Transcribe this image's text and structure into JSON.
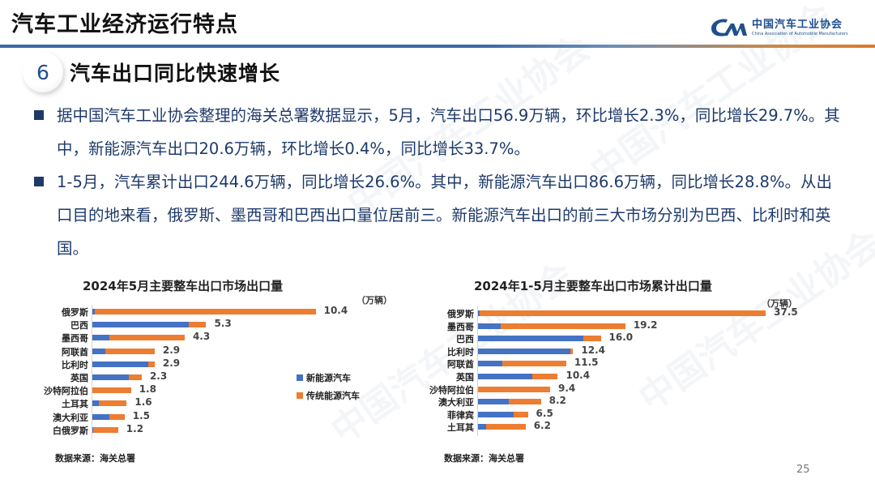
{
  "header": {
    "title": "汽车工业经济运行特点",
    "logo": {
      "mark": "CM",
      "name_cn": "中国汽车工业协会",
      "name_en": "China Association of Automobile Manufacturers"
    }
  },
  "section": {
    "number": "6",
    "title": "汽车出口同比快速增长"
  },
  "bullets": [
    {
      "text": "据中国汽车工业协会整理的海关总署数据显示，5月，汽车出口56.9万辆，环比增长2.3%，同比增长29.7%。其中，新能源汽车出口20.6万辆，环比增长0.4%，同比增长33.7%。"
    },
    {
      "text": "1-5月，汽车累计出口244.6万辆，同比增长26.6%。其中，新能源汽车出口86.6万辆，同比增长28.8%。从出口目的地来看，俄罗斯、墨西哥和巴西出口量位居前三。新能源汽车出口的前三大市场分别为巴西、比利时和英国。"
    }
  ],
  "legend": {
    "nev": "新能源汽车",
    "ice": "传统能源汽车"
  },
  "colors": {
    "nev": "#4472c4",
    "ice": "#ed7d31",
    "text_blue": "#1e3a6a",
    "brand_blue": "#1f4f8f"
  },
  "charts": {
    "left": {
      "title": "2024年5月主要整车出口市场出口量",
      "unit": "（万辆）",
      "source": "数据来源：海关总署"
    },
    "right": {
      "title": "2024年1-5月主要整车出口市场累计出口量",
      "unit": "（万辆）",
      "source": "数据来源：海关总署"
    }
  },
  "page_number": "25",
  "chart_data": [
    {
      "type": "bar",
      "orientation": "horizontal",
      "stacked": true,
      "title": "2024年5月主要整车出口市场出口量",
      "unit": "万辆",
      "categories": [
        "俄罗斯",
        "巴西",
        "墨西哥",
        "阿联酋",
        "比利时",
        "英国",
        "沙特阿拉伯",
        "土耳其",
        "澳大利亚",
        "白俄罗斯"
      ],
      "totals": [
        10.4,
        5.3,
        4.3,
        2.9,
        2.9,
        2.3,
        1.8,
        1.6,
        1.5,
        1.2
      ],
      "series": [
        {
          "name": "新能源汽车",
          "color": "#4472c4",
          "values": [
            0.1,
            4.5,
            0.8,
            0.6,
            2.6,
            1.7,
            0.0,
            0.3,
            0.8,
            0.05
          ]
        },
        {
          "name": "传统能源汽车",
          "color": "#ed7d31",
          "values": [
            10.3,
            0.8,
            3.5,
            2.3,
            0.3,
            0.6,
            1.8,
            1.3,
            0.7,
            1.15
          ]
        }
      ],
      "legend_position": "right",
      "grid": false,
      "xlim": [
        0,
        10.4
      ],
      "source": "数据来源：海关总署"
    },
    {
      "type": "bar",
      "orientation": "horizontal",
      "stacked": true,
      "title": "2024年1-5月主要整车出口市场累计出口量",
      "unit": "万辆",
      "categories": [
        "俄罗斯",
        "墨西哥",
        "巴西",
        "比利时",
        "阿联酋",
        "英国",
        "沙特阿拉伯",
        "澳大利亚",
        "菲律宾",
        "土耳其"
      ],
      "totals": [
        37.5,
        19.2,
        16.0,
        12.4,
        11.5,
        10.4,
        9.4,
        8.2,
        6.5,
        6.2
      ],
      "series": [
        {
          "name": "新能源汽车",
          "color": "#4472c4",
          "values": [
            0.2,
            3.0,
            13.7,
            12.0,
            3.2,
            7.1,
            0.0,
            4.0,
            4.6,
            1.1
          ]
        },
        {
          "name": "传统能源汽车",
          "color": "#ed7d31",
          "values": [
            37.3,
            16.2,
            2.3,
            0.4,
            8.3,
            3.3,
            9.4,
            4.2,
            1.9,
            5.1
          ]
        }
      ],
      "legend_position": "none",
      "grid": false,
      "xlim": [
        0,
        37.5
      ],
      "source": "数据来源：海关总署"
    }
  ]
}
